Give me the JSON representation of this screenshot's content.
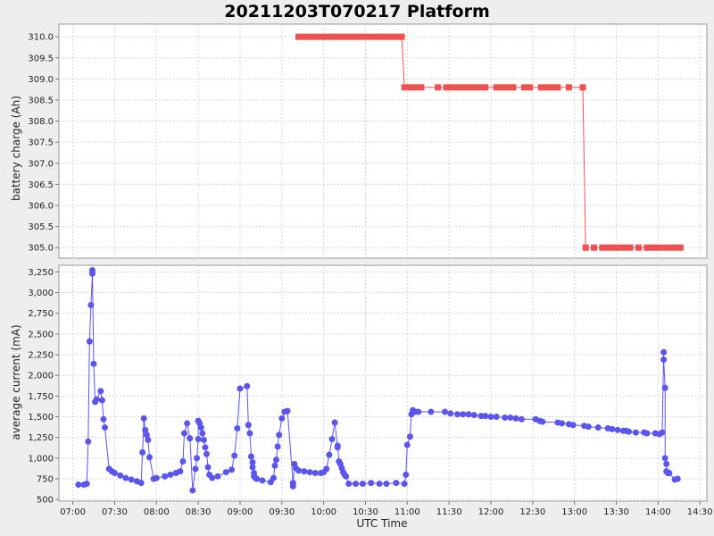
{
  "colors": {
    "background": "#eeeeee",
    "plot_background": "#ffffff",
    "battery_series": "#ef5050",
    "current_series": "#5a55ef"
  },
  "chart_data": [
    {
      "type": "line",
      "title": "20211203T070217 Platform",
      "xlabel": "",
      "ylabel": "battery charge (Ah)",
      "ylim": [
        304.75,
        310.3
      ],
      "yticks": [
        "305.0",
        "305.5",
        "306.0",
        "306.5",
        "307.0",
        "307.5",
        "308.0",
        "308.5",
        "309.0",
        "309.5",
        "310.0"
      ],
      "xlim": [
        "06:50",
        "14:35"
      ],
      "grid": true,
      "marker": "square",
      "series": [
        {
          "x": [
            "09:42",
            "09:46",
            "09:50",
            "09:54",
            "09:58",
            "10:02",
            "10:06",
            "10:10",
            "10:14",
            "10:18",
            "10:22",
            "10:26",
            "10:30",
            "10:34",
            "10:38",
            "10:42",
            "10:46",
            "10:50",
            "10:54",
            "10:56",
            "10:58",
            "11:02",
            "11:06",
            "11:10",
            "11:22",
            "11:28",
            "11:32",
            "11:36",
            "11:40",
            "11:44",
            "11:48",
            "11:52",
            "11:56",
            "12:04",
            "12:08",
            "12:12",
            "12:16",
            "12:24",
            "12:28",
            "12:36",
            "12:40",
            "12:44",
            "12:48",
            "12:56",
            "13:06",
            "13:08",
            "13:14",
            "13:20",
            "13:24",
            "13:28",
            "13:32",
            "13:36",
            "13:40",
            "13:46",
            "13:52",
            "13:56",
            "14:00",
            "14:04",
            "14:08",
            "14:12",
            "14:16"
          ],
          "y": [
            310.0,
            310.0,
            310.0,
            310.0,
            310.0,
            310.0,
            310.0,
            310.0,
            310.0,
            310.0,
            310.0,
            310.0,
            310.0,
            310.0,
            310.0,
            310.0,
            310.0,
            310.0,
            310.0,
            310.0,
            308.8,
            308.8,
            308.8,
            308.8,
            308.8,
            308.8,
            308.8,
            308.8,
            308.8,
            308.8,
            308.8,
            308.8,
            308.8,
            308.8,
            308.8,
            308.8,
            308.8,
            308.8,
            308.8,
            308.8,
            308.8,
            308.8,
            308.8,
            308.8,
            308.8,
            305.0,
            305.0,
            305.0,
            305.0,
            305.0,
            305.0,
            305.0,
            305.0,
            305.0,
            305.0,
            305.0,
            305.0,
            305.0,
            305.0,
            305.0,
            305.0
          ]
        }
      ]
    },
    {
      "type": "line",
      "xlabel": "UTC Time",
      "ylabel": "average current (mA)",
      "ylim": [
        480,
        3330
      ],
      "yticks": [
        "500",
        "750",
        "1,000",
        "1,250",
        "1,500",
        "1,750",
        "2,000",
        "2,250",
        "2,500",
        "2,750",
        "3,000",
        "3,250"
      ],
      "xlim": [
        "06:50",
        "14:35"
      ],
      "xticks": [
        "07:00",
        "07:30",
        "08:00",
        "08:30",
        "09:00",
        "09:30",
        "10:00",
        "10:30",
        "11:00",
        "11:30",
        "12:00",
        "12:30",
        "13:00",
        "13:30",
        "14:00",
        "14:30"
      ],
      "grid": true,
      "marker": "circle",
      "series": [
        {
          "x": [
            "07:04",
            "07:08",
            "07:10",
            "07:11",
            "07:12",
            "07:13",
            "07:14",
            "07:14",
            "07:15",
            "07:16",
            "07:17",
            "07:20",
            "07:21",
            "07:22",
            "07:23",
            "07:26",
            "07:28",
            "07:30",
            "07:34",
            "07:38",
            "07:42",
            "07:46",
            "07:49",
            "07:50",
            "07:51",
            "07:52",
            "07:53",
            "07:54",
            "07:55",
            "07:58",
            "08:00",
            "08:06",
            "08:10",
            "08:14",
            "08:17",
            "08:19",
            "08:20",
            "08:22",
            "08:24",
            "08:26",
            "08:28",
            "08:29",
            "08:30",
            "08:30",
            "08:31",
            "08:32",
            "08:33",
            "08:34",
            "08:35",
            "08:36",
            "08:37",
            "08:38",
            "08:40",
            "08:44",
            "08:50",
            "08:54",
            "08:56",
            "08:58",
            "09:00",
            "09:05",
            "09:06",
            "09:07",
            "09:08",
            "09:09",
            "09:09",
            "09:10",
            "09:10",
            "09:11",
            "09:12",
            "09:16",
            "09:22",
            "09:24",
            "09:25",
            "09:26",
            "09:27",
            "09:28",
            "09:30",
            "09:32",
            "09:34",
            "09:38",
            "09:38",
            "09:39",
            "09:40",
            "09:42",
            "09:46",
            "09:50",
            "09:54",
            "09:58",
            "10:00",
            "10:02",
            "10:04",
            "10:06",
            "10:08",
            "10:10",
            "10:10",
            "10:11",
            "10:12",
            "10:13",
            "10:14",
            "10:15",
            "10:16",
            "10:18",
            "10:23",
            "10:28",
            "10:34",
            "10:40",
            "10:45",
            "10:52",
            "10:58",
            "10:59",
            "11:00",
            "11:02",
            "11:03",
            "11:04",
            "11:06",
            "11:08",
            "11:17",
            "11:27",
            "11:31",
            "11:36",
            "11:40",
            "11:44",
            "11:48",
            "11:53",
            "11:56",
            "12:00",
            "12:04",
            "12:10",
            "12:14",
            "12:18",
            "12:22",
            "12:32",
            "12:35",
            "12:37",
            "12:48",
            "12:51",
            "12:56",
            "12:59",
            "13:07",
            "13:10",
            "13:17",
            "13:24",
            "13:27",
            "13:31",
            "13:35",
            "13:37",
            "13:39",
            "13:44",
            "13:50",
            "13:52",
            "13:58",
            "14:01",
            "14:03",
            "14:04",
            "14:04",
            "14:05",
            "14:05",
            "14:06",
            "14:06",
            "14:07",
            "14:08",
            "14:12",
            "14:14"
          ],
          "y": [
            680,
            680,
            690,
            1200,
            2410,
            2850,
            3230,
            3270,
            2140,
            1680,
            1710,
            1810,
            1700,
            1470,
            1370,
            870,
            840,
            820,
            790,
            760,
            740,
            720,
            700,
            1070,
            1480,
            1340,
            1280,
            1220,
            1010,
            750,
            760,
            780,
            800,
            820,
            840,
            960,
            1300,
            1420,
            1240,
            610,
            870,
            1000,
            1230,
            1450,
            1420,
            1370,
            1300,
            1220,
            1130,
            1050,
            890,
            800,
            760,
            780,
            830,
            860,
            1030,
            1360,
            1840,
            1870,
            1400,
            1300,
            1020,
            950,
            890,
            820,
            780,
            760,
            750,
            730,
            710,
            760,
            910,
            980,
            1140,
            1280,
            1480,
            1560,
            1570,
            700,
            660,
            930,
            880,
            850,
            840,
            830,
            820,
            820,
            830,
            870,
            1040,
            1230,
            1430,
            1130,
            1150,
            960,
            930,
            880,
            830,
            800,
            780,
            690,
            690,
            690,
            700,
            690,
            690,
            700,
            690,
            800,
            1160,
            1260,
            1530,
            1580,
            1560,
            1560,
            1560,
            1560,
            1540,
            1530,
            1530,
            1530,
            1520,
            1510,
            1510,
            1500,
            1500,
            1490,
            1490,
            1480,
            1470,
            1470,
            1450,
            1440,
            1430,
            1420,
            1410,
            1400,
            1390,
            1380,
            1370,
            1360,
            1350,
            1340,
            1330,
            1330,
            1320,
            1310,
            1310,
            1300,
            1300,
            1290,
            1310,
            2280,
            2190,
            1850,
            1000,
            930,
            840,
            820,
            820,
            740,
            750
          ]
        }
      ]
    }
  ]
}
